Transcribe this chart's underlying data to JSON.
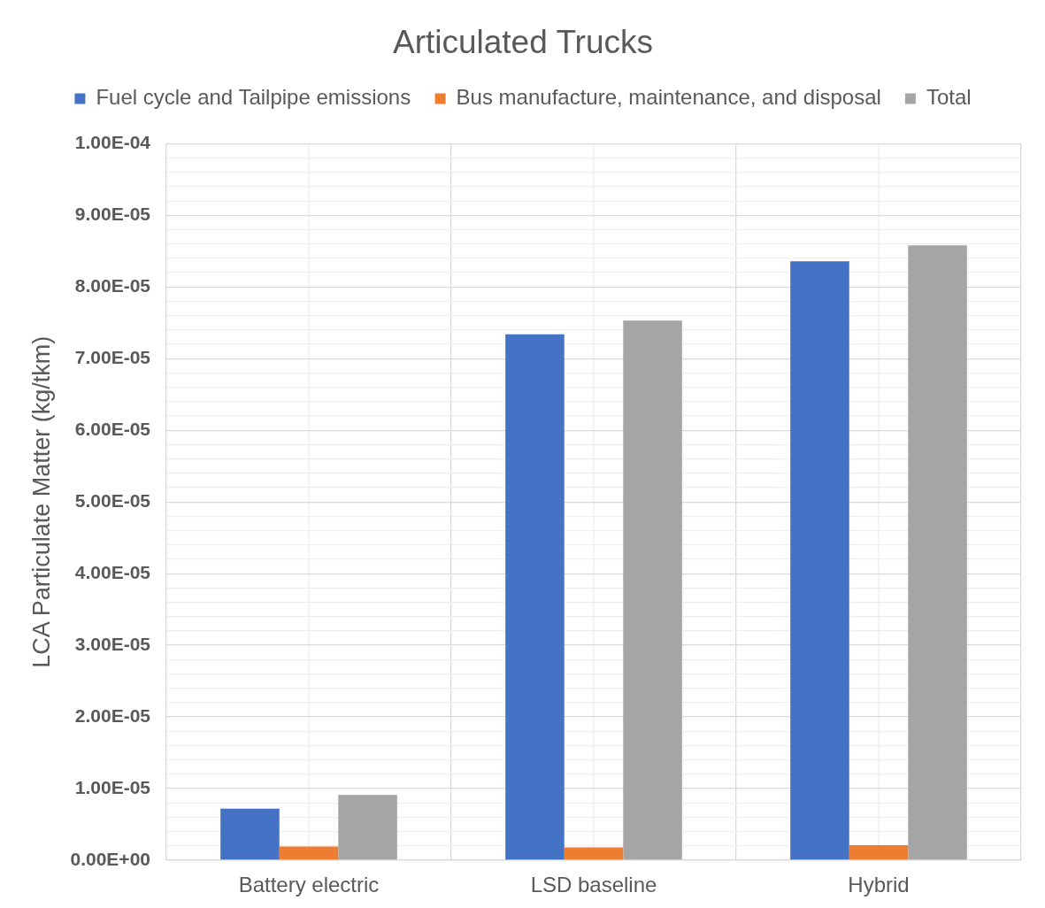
{
  "chart_data": {
    "type": "bar",
    "title": "Articulated Trucks",
    "ylabel": "LCA Particulate Matter (kg/tkm)",
    "categories": [
      "Battery electric",
      "LSD baseline",
      "Hybrid"
    ],
    "series": [
      {
        "name": "Fuel cycle and Tailpipe emissions",
        "color": "#4472c4",
        "values": [
          7.2e-06,
          7.34e-05,
          8.36e-05
        ]
      },
      {
        "name": "Bus manufacture, maintenance, and disposal",
        "color": "#ed7d31",
        "values": [
          1.9e-06,
          1.8e-06,
          2.1e-06
        ]
      },
      {
        "name": "Total",
        "color": "#a5a5a5",
        "values": [
          9.1e-06,
          7.53e-05,
          8.58e-05
        ]
      }
    ],
    "ylim": [
      0,
      0.0001
    ],
    "yticks": [
      {
        "value": 0,
        "label": "0.00E+00"
      },
      {
        "value": 2e-06,
        "label": null
      },
      {
        "value": 4e-06,
        "label": null
      },
      {
        "value": 6e-06,
        "label": null
      },
      {
        "value": 8e-06,
        "label": null
      },
      {
        "value": 1e-05,
        "label": "1.00E-05"
      },
      {
        "value": 1.2e-05,
        "label": null
      },
      {
        "value": 1.4e-05,
        "label": null
      },
      {
        "value": 1.6e-05,
        "label": null
      },
      {
        "value": 1.8e-05,
        "label": null
      },
      {
        "value": 2e-05,
        "label": "2.00E-05"
      },
      {
        "value": 2.2e-05,
        "label": null
      },
      {
        "value": 2.4e-05,
        "label": null
      },
      {
        "value": 2.6e-05,
        "label": null
      },
      {
        "value": 2.8e-05,
        "label": null
      },
      {
        "value": 3e-05,
        "label": "3.00E-05"
      },
      {
        "value": 3.2e-05,
        "label": null
      },
      {
        "value": 3.4e-05,
        "label": null
      },
      {
        "value": 3.6e-05,
        "label": null
      },
      {
        "value": 3.8e-05,
        "label": null
      },
      {
        "value": 4e-05,
        "label": "4.00E-05"
      },
      {
        "value": 4.2e-05,
        "label": null
      },
      {
        "value": 4.4e-05,
        "label": null
      },
      {
        "value": 4.6e-05,
        "label": null
      },
      {
        "value": 4.8e-05,
        "label": null
      },
      {
        "value": 5e-05,
        "label": "5.00E-05"
      },
      {
        "value": 5.2e-05,
        "label": null
      },
      {
        "value": 5.4e-05,
        "label": null
      },
      {
        "value": 5.6e-05,
        "label": null
      },
      {
        "value": 5.8e-05,
        "label": null
      },
      {
        "value": 6e-05,
        "label": "6.00E-05"
      },
      {
        "value": 6.2e-05,
        "label": null
      },
      {
        "value": 6.4e-05,
        "label": null
      },
      {
        "value": 6.6e-05,
        "label": null
      },
      {
        "value": 6.8e-05,
        "label": null
      },
      {
        "value": 7e-05,
        "label": "7.00E-05"
      },
      {
        "value": 7.2e-05,
        "label": null
      },
      {
        "value": 7.4e-05,
        "label": null
      },
      {
        "value": 7.6e-05,
        "label": null
      },
      {
        "value": 7.8e-05,
        "label": null
      },
      {
        "value": 8e-05,
        "label": "8.00E-05"
      },
      {
        "value": 8.2e-05,
        "label": null
      },
      {
        "value": 8.4e-05,
        "label": null
      },
      {
        "value": 8.6e-05,
        "label": null
      },
      {
        "value": 8.8e-05,
        "label": null
      },
      {
        "value": 9e-05,
        "label": "9.00E-05"
      },
      {
        "value": 9.2e-05,
        "label": null
      },
      {
        "value": 9.4e-05,
        "label": null
      },
      {
        "value": 9.6e-05,
        "label": null
      },
      {
        "value": 9.8e-05,
        "label": null
      },
      {
        "value": 0.0001,
        "label": "1.00E-04"
      }
    ],
    "grid": true,
    "legend": "top"
  }
}
